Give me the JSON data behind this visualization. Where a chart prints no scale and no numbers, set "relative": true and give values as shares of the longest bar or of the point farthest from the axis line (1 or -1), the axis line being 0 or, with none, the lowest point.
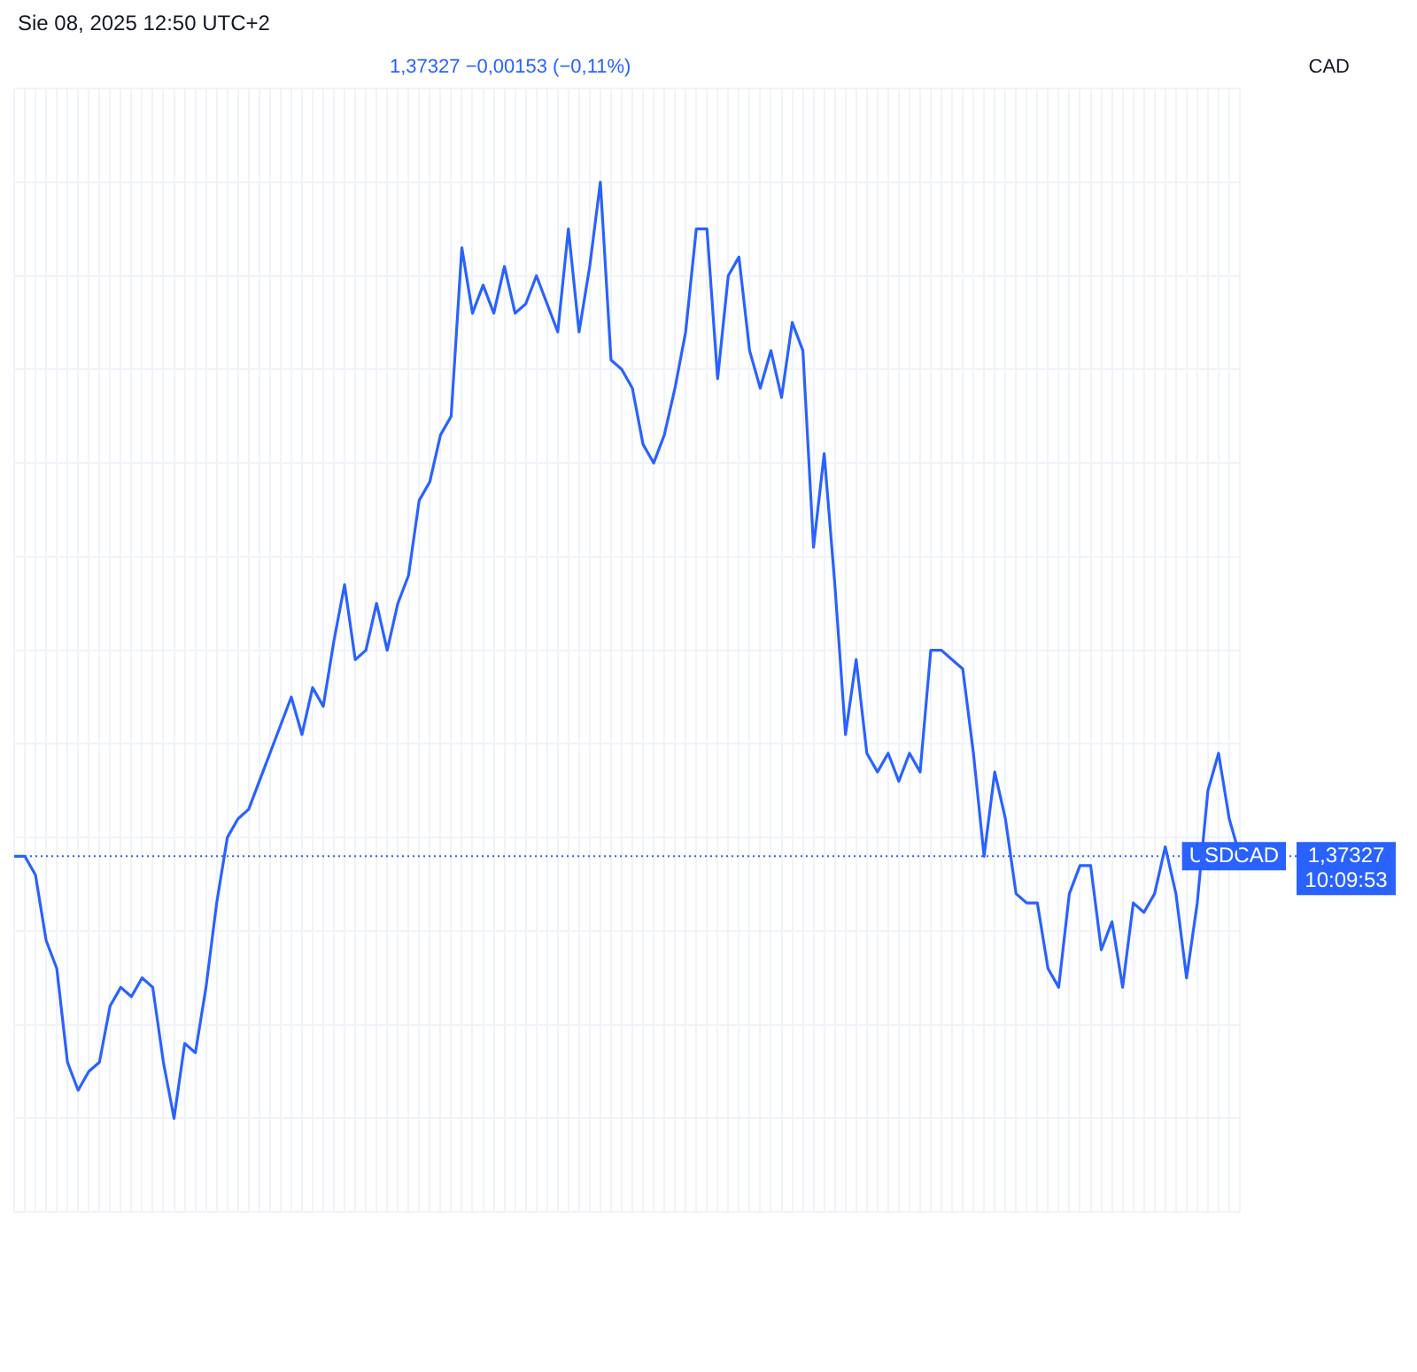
{
  "chart_data": {
    "type": "line",
    "relative": true,
    "grid": true,
    "legend": false,
    "marker": "none",
    "line_style": "solid",
    "annotations": [
      "Sie 08, 2025 12:50 UTC+2",
      "1,37327  −0,00153 (−0,11%)",
      "CAD",
      "10:09:53"
    ],
    "categories": [
      null,
      null,
      null,
      null,
      null,
      null,
      null,
      null,
      null,
      null,
      null,
      null,
      null,
      null,
      null,
      null,
      null,
      null,
      null,
      null,
      null,
      null,
      null,
      null,
      null,
      null,
      null,
      null,
      null,
      null,
      null,
      null,
      null,
      null,
      null,
      null,
      null,
      null,
      null,
      null,
      null,
      null,
      null,
      null,
      null,
      null,
      null,
      null,
      null,
      null,
      null,
      null,
      null,
      null,
      null,
      null,
      null,
      null,
      null,
      null,
      null,
      null,
      null,
      null,
      null,
      null,
      null,
      null,
      null,
      null,
      null,
      null,
      null,
      null,
      null,
      null,
      null,
      null,
      null,
      null,
      null,
      null,
      null,
      null,
      null,
      null,
      null,
      null,
      null,
      null,
      null,
      null,
      null,
      null,
      null,
      null,
      null,
      null,
      null,
      null,
      null,
      null,
      null,
      null,
      null,
      null,
      null,
      null,
      null,
      null,
      null,
      null,
      null,
      null,
      null,
      null
    ],
    "series": [
      {
        "name": "USDCAD",
        "color": "#2962ff",
        "values": [
          0.28,
          0.28,
          0.26,
          0.19,
          0.16,
          0.06,
          0.03,
          0.05,
          0.06,
          0.12,
          0.14,
          0.13,
          0.15,
          0.14,
          0.06,
          0,
          0.08,
          0.07,
          0.14,
          0.23,
          0.3,
          0.32,
          0.33,
          0.36,
          0.39,
          0.42,
          0.45,
          0.41,
          0.46,
          0.44,
          0.51,
          0.57,
          0.49,
          0.5,
          0.55,
          0.5,
          0.55,
          0.58,
          0.66,
          0.68,
          0.73,
          0.75,
          0.93,
          0.86,
          0.89,
          0.86,
          0.91,
          0.86,
          0.87,
          0.9,
          0.87,
          0.84,
          0.95,
          0.84,
          0.91,
          1,
          0.81,
          0.8,
          0.78,
          0.72,
          0.7,
          0.73,
          0.78,
          0.84,
          0.95,
          0.95,
          0.79,
          0.9,
          0.92,
          0.82,
          0.78,
          0.82,
          0.77,
          0.85,
          0.82,
          0.61,
          0.71,
          0.57,
          0.41,
          0.49,
          0.39,
          0.37,
          0.39,
          0.36,
          0.39,
          0.37,
          0.5,
          0.5,
          0.49,
          0.48,
          0.39,
          0.28,
          0.37,
          0.32,
          0.24,
          0.23,
          0.23,
          0.16,
          0.14,
          0.24,
          0.27,
          0.27,
          0.18,
          0.21,
          0.14,
          0.23,
          0.22,
          0.24,
          0.29,
          0.24,
          0.15,
          0.23,
          0.35,
          0.39,
          0.32,
          0.28
        ]
      }
    ],
    "ref_lines": [
      {
        "axis": "y",
        "value": 0.28,
        "label": "1,37327",
        "color": "#2962ff",
        "line_style": "dotted"
      }
    ]
  }
}
